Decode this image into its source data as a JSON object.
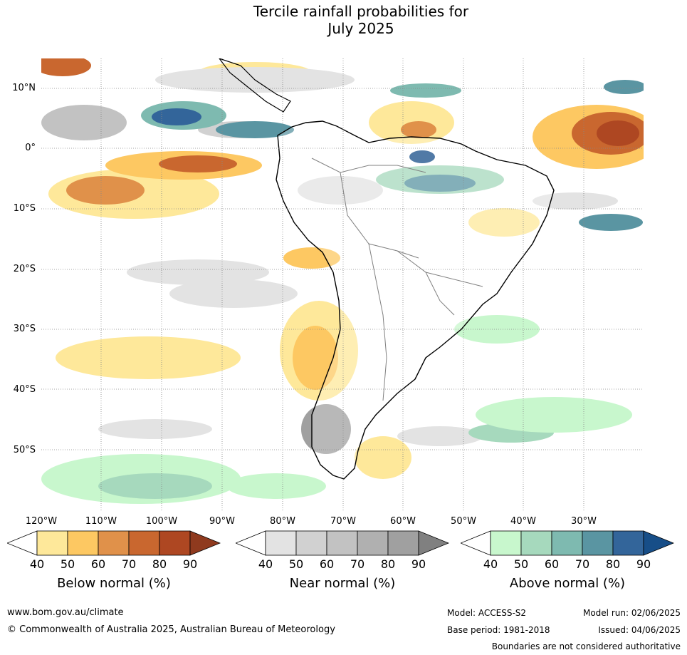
{
  "title": {
    "line1": "Tercile rainfall probabilities for",
    "line2": "July 2025"
  },
  "map": {
    "region": "South America and surrounding oceans",
    "latitude_labels": [
      "10°N",
      "0°",
      "10°S",
      "20°S",
      "30°S",
      "40°S",
      "50°S"
    ],
    "longitude_labels": [
      "120°W",
      "110°W",
      "100°W",
      "90°W",
      "80°W",
      "70°W",
      "60°W",
      "50°W",
      "40°W",
      "30°W"
    ],
    "graticule": "dotted",
    "colors": {
      "ocean_background": "#ffffff",
      "coastline": "#000000",
      "borders": "#808080"
    }
  },
  "colorbars": [
    {
      "title": "Below normal (%)",
      "ticks": [
        "40",
        "50",
        "60",
        "70",
        "80",
        "90"
      ],
      "colors": [
        "#ffffff",
        "#fee89a",
        "#fdc862",
        "#e0914a",
        "#c9672f",
        "#ae4722",
        "#8f3a1e"
      ]
    },
    {
      "title": "Near normal (%)",
      "ticks": [
        "40",
        "50",
        "60",
        "70",
        "80",
        "90"
      ],
      "colors": [
        "#ffffff",
        "#e3e3e3",
        "#d1d1d1",
        "#c2c2c2",
        "#b0b0b0",
        "#a0a0a0",
        "#808080"
      ]
    },
    {
      "title": "Above normal (%)",
      "ticks": [
        "40",
        "50",
        "60",
        "70",
        "80",
        "90"
      ],
      "colors": [
        "#ffffff",
        "#c8f7cd",
        "#a6d9bd",
        "#7ebab0",
        "#5a95a2",
        "#33659a",
        "#174e88"
      ]
    }
  ],
  "footer": {
    "website": "www.bom.gov.au/climate",
    "copyright": "© Commonwealth of Australia 2025, Australian Bureau of Meteorology",
    "model": "Model: ACCESS-S2",
    "base_period": "Base period: 1981-2018",
    "model_run": "Model run: 02/06/2025",
    "issued": "Issued: 04/06/2025",
    "disclaimer": "Boundaries are not considered authoritative"
  }
}
